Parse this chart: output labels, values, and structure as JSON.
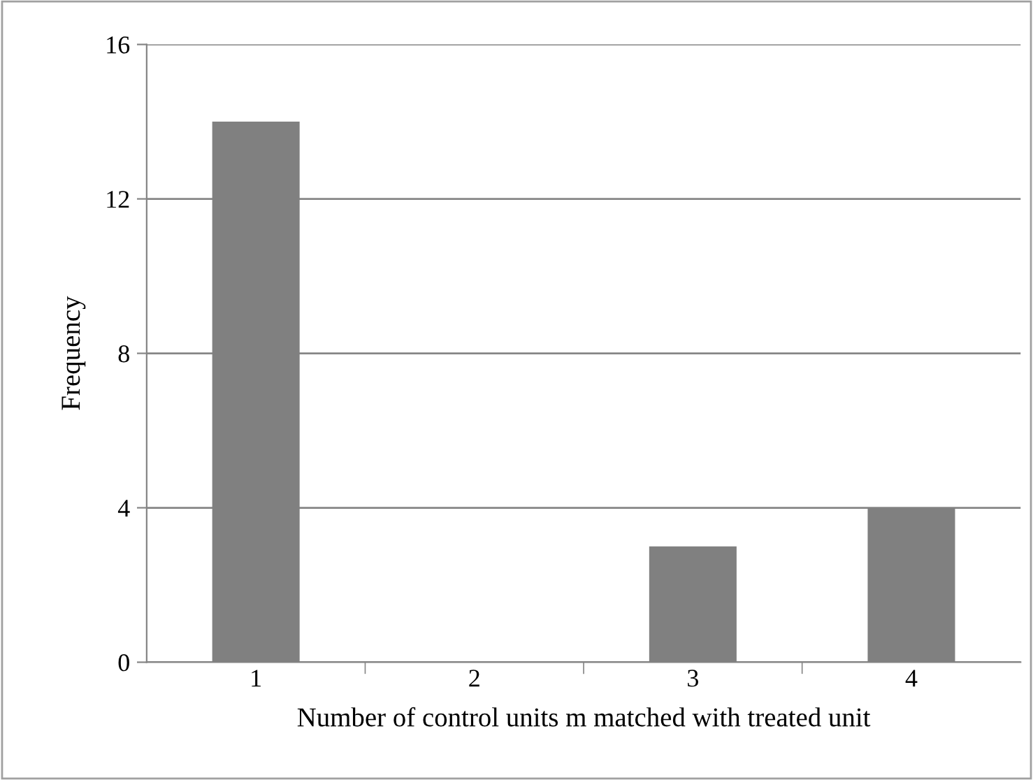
{
  "chart_data": {
    "type": "bar",
    "xlabel": "Number of control units m matched with treated unit",
    "ylabel": "Frequency",
    "categories": [
      "1",
      "2",
      "3",
      "4"
    ],
    "values": [
      14,
      0,
      3,
      4
    ],
    "color": "#808080",
    "ylim": [
      0,
      16
    ],
    "yticks": [
      0,
      4,
      8,
      12,
      16
    ],
    "grid": "y"
  }
}
